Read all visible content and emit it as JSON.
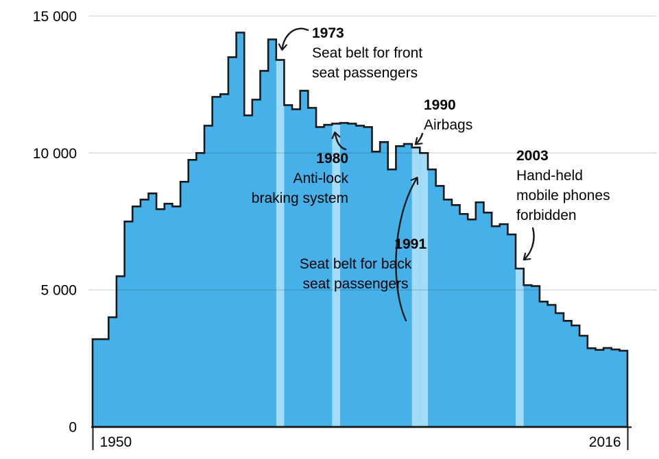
{
  "chart_data": {
    "type": "area-step",
    "title": "",
    "x": [
      1950,
      1951,
      1952,
      1953,
      1954,
      1955,
      1956,
      1957,
      1958,
      1959,
      1960,
      1961,
      1962,
      1963,
      1964,
      1965,
      1966,
      1967,
      1968,
      1969,
      1970,
      1971,
      1972,
      1973,
      1974,
      1975,
      1976,
      1977,
      1978,
      1979,
      1980,
      1981,
      1982,
      1983,
      1984,
      1985,
      1986,
      1987,
      1988,
      1989,
      1990,
      1991,
      1992,
      1993,
      1994,
      1995,
      1996,
      1997,
      1998,
      1999,
      2000,
      2001,
      2002,
      2003,
      2004,
      2005,
      2006,
      2007,
      2008,
      2009,
      2010,
      2011,
      2012,
      2013,
      2014,
      2015,
      2016
    ],
    "values": [
      3200,
      3200,
      4000,
      5500,
      7500,
      8050,
      8300,
      8525,
      7950,
      8150,
      8050,
      8950,
      9750,
      10000,
      11000,
      12050,
      12150,
      13500,
      14400,
      11375,
      11950,
      13000,
      14150,
      13400,
      11750,
      11600,
      12275,
      11650,
      10950,
      11030,
      11075,
      11100,
      11075,
      11000,
      10950,
      10050,
      10400,
      9400,
      10250,
      10330,
      10200,
      10000,
      9400,
      8800,
      8300,
      8100,
      7775,
      7575,
      8200,
      7825,
      7325,
      7400,
      7025,
      5780,
      5175,
      5140,
      4575,
      4450,
      4150,
      3870,
      3700,
      3325,
      2870,
      2810,
      2880,
      2825,
      2780
    ],
    "ylim": [
      0,
      15000
    ],
    "yticks": [
      {
        "value": 0,
        "label": "0"
      },
      {
        "value": 5000,
        "label": "5 000"
      },
      {
        "value": 10000,
        "label": "10 000"
      },
      {
        "value": 15000,
        "label": "15 000"
      }
    ],
    "xticks": [
      {
        "value": 1950,
        "label": "1950"
      },
      {
        "value": 2016,
        "label": "2016"
      }
    ],
    "highlighted_years": [
      1973,
      1980,
      1990,
      1991,
      2003
    ],
    "grid": "horizontal",
    "legend": "none",
    "colors": {
      "fill": "#46b0e9",
      "highlight": "#a3dcf8",
      "outline": "#1a1a1a",
      "gridline": "#d9d9d9",
      "axis": "#1a1a1a",
      "text": "#000000"
    }
  },
  "annotations": [
    {
      "year": "1973",
      "lines": [
        "Seat belt for front",
        "seat passengers"
      ]
    },
    {
      "year": "1980",
      "lines": [
        "Anti-lock",
        "braking system"
      ]
    },
    {
      "year": "1990",
      "lines": [
        "Airbags"
      ]
    },
    {
      "year": "1991",
      "lines": [
        "Seat belt for back",
        "seat passengers"
      ]
    },
    {
      "year": "2003",
      "lines": [
        "Hand-held",
        "mobile phones",
        "forbidden"
      ]
    }
  ]
}
